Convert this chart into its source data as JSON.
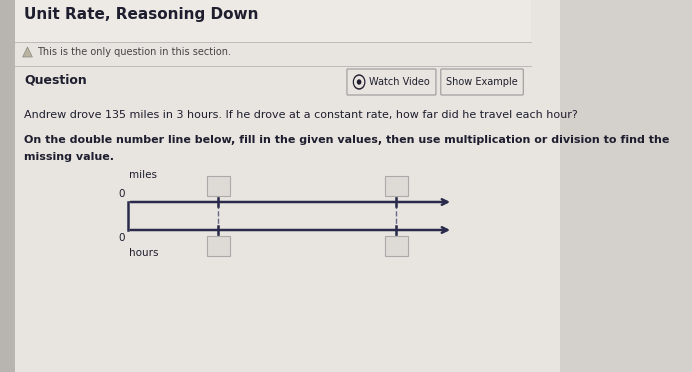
{
  "title": "Unit Rate, Reasoning Down",
  "subtitle": "This is the only question in this section.",
  "question_label": "Question",
  "watch_video_btn": "Watch Video",
  "show_example_btn": "Show Example",
  "main_text": "Andrew drove 135 miles in 3 hours. If he drove at a constant rate, how far did he travel each hour?",
  "instruction_line1": "On the double number line below, fill in the given values, then use multiplication or division to find the",
  "instruction_line2": "missing value.",
  "miles_label": "miles",
  "hours_label": "hours",
  "zero_top": "0",
  "zero_bottom": "0",
  "bg_color": "#d4d0cc",
  "page_bg": "#e8e5e0",
  "white": "#f0eeeb",
  "dark_text": "#1e1e2e",
  "medium_text": "#444444",
  "line_color": "#2a2a4a",
  "dashed_color": "#666688",
  "box_fill": "#e0ddd8",
  "box_edge": "#aaaaaa",
  "btn_bg": "#e8e5e0",
  "btn_border": "#999999",
  "sep_color": "#bbbbbb",
  "title_size": 11,
  "subtitle_size": 7,
  "question_size": 9,
  "body_size": 8,
  "diagram_label_size": 7.5
}
